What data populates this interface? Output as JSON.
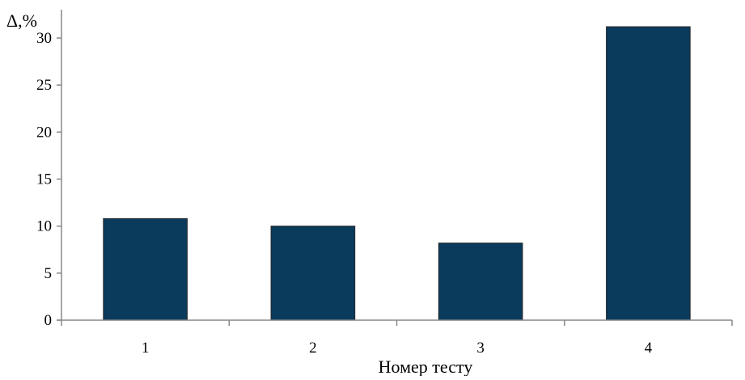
{
  "chart_data": {
    "type": "bar",
    "categories": [
      "1",
      "2",
      "3",
      "4"
    ],
    "values": [
      10.8,
      10.0,
      8.2,
      31.2
    ],
    "xlabel": "Номер тесту",
    "ylabel": "Δ,%",
    "ylim": [
      0,
      30
    ],
    "yticks": [
      "0",
      "5",
      "10",
      "15",
      "20",
      "25",
      "30"
    ],
    "grid": false,
    "legend": "none",
    "bar_color": "#0a3a5c",
    "axis_color": "#888888"
  }
}
